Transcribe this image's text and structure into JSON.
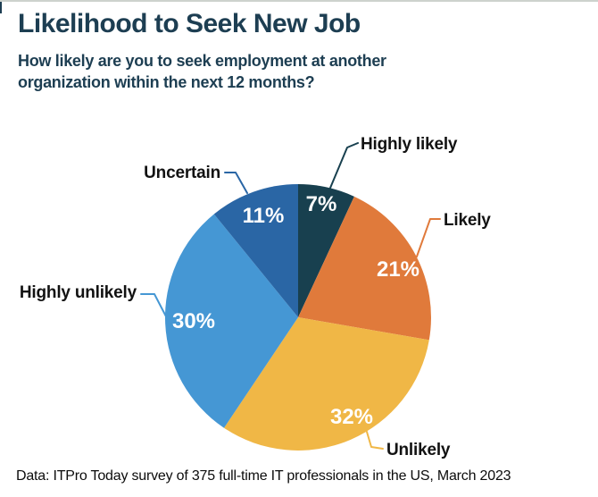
{
  "header": {
    "title": "Likelihood to Seek New Job",
    "subtitle_lines": [
      "How likely are you to seek employment at another",
      "organization within the next 12 months?"
    ]
  },
  "footer": {
    "source": "Data: ITPro Today survey of 375 full-time IT professionals in the US, March 2023"
  },
  "colors": {
    "title_text": "#1d3e52",
    "category_label_text": "#121212",
    "percent_label_text": "#ffffff",
    "background": "#ffffff",
    "top_border": "#cdd2cd"
  },
  "chart_data": {
    "type": "pie",
    "title": "Likelihood to Seek New Job",
    "question": "How likely are you to seek employment at another organization within the next 12 months?",
    "unit": "%",
    "start_angle_deg": 0,
    "direction": "clockwise",
    "legend_position": "outside-callout-labels",
    "slices": [
      {
        "label": "Highly likely",
        "value": 7,
        "display": "7%",
        "color": "#18404f"
      },
      {
        "label": "Likely",
        "value": 21,
        "display": "21%",
        "color": "#e07a3b"
      },
      {
        "label": "Unlikely",
        "value": 32,
        "display": "32%",
        "color": "#f0b746"
      },
      {
        "label": "Highly unlikely",
        "value": 30,
        "display": "30%",
        "color": "#4597d4"
      },
      {
        "label": "Uncertain",
        "value": 11,
        "display": "11%",
        "color": "#2a66a5"
      }
    ],
    "source": "Data: ITPro Today survey of 375 full-time IT professionals in the US, March 2023"
  }
}
